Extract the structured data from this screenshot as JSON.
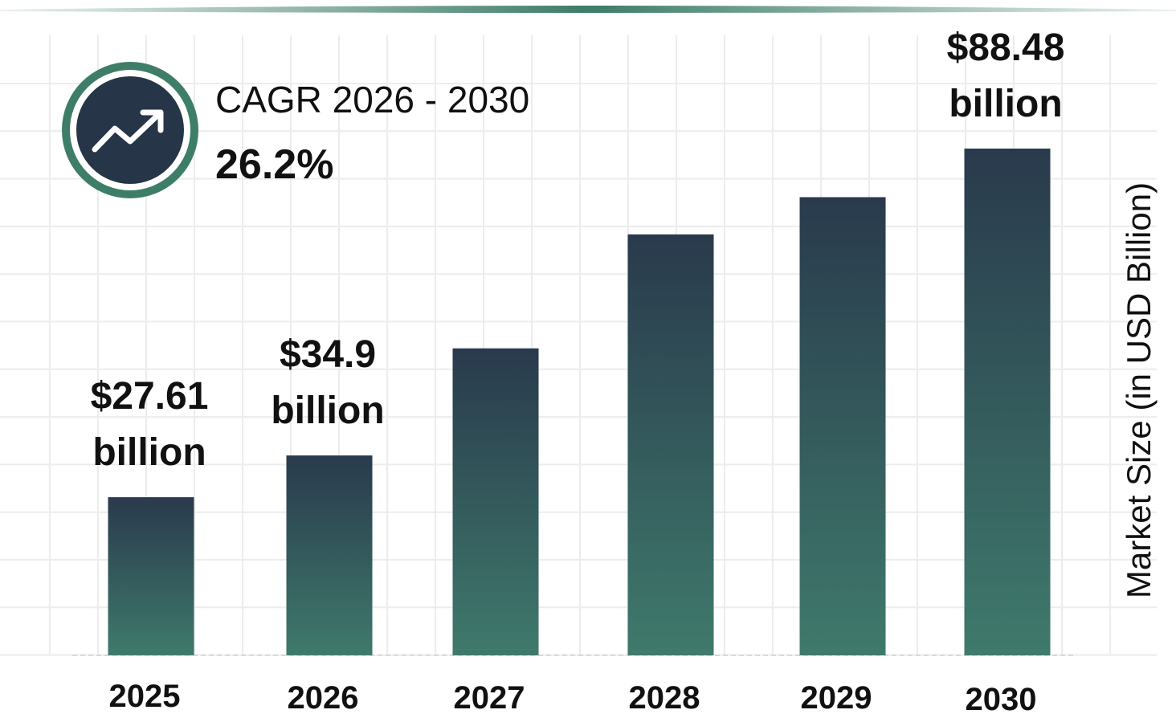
{
  "cagr": {
    "label": "CAGR 2026 - 2030",
    "value": "26.2%",
    "icon": "trend-up-icon"
  },
  "colors": {
    "bar_top": "#293a4c",
    "bar_bottom": "#3f7a6c",
    "accent": "#3e7d68",
    "grid": "#ececec"
  },
  "chart_data": {
    "type": "bar",
    "title": "",
    "xlabel": "",
    "ylabel": "Market Size (in USD Billion)",
    "categories": [
      "2025",
      "2026",
      "2027",
      "2028",
      "2029",
      "2030"
    ],
    "values": [
      27.61,
      34.9,
      53.6,
      73.5,
      80.0,
      88.48
    ],
    "value_labels": [
      {
        "line1": "$27.61",
        "line2": "billion"
      },
      {
        "line1": "$34.9",
        "line2": "billion"
      },
      null,
      null,
      null,
      {
        "line1": "$88.48",
        "line2": "billion"
      }
    ],
    "ylim": [
      0,
      100
    ],
    "grid": true,
    "legend": "none"
  }
}
